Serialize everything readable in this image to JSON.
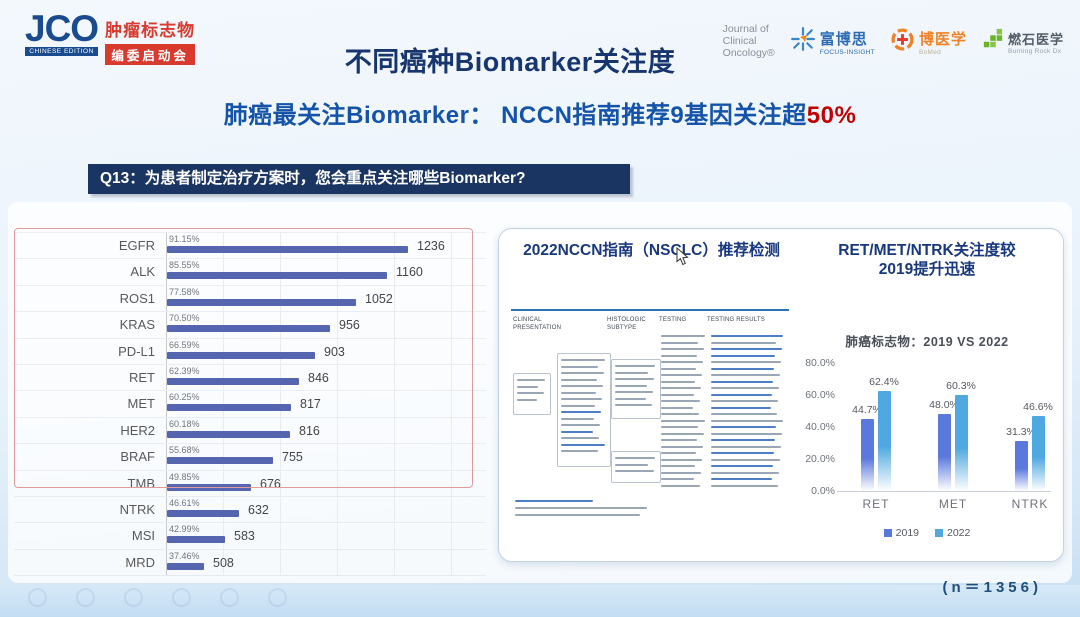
{
  "header": {
    "jco_logo": {
      "acronym": "JCO",
      "edition": "CHINESE EDITION",
      "line1": "肿瘤标志物",
      "line2": "编委启动会"
    },
    "title": "不同癌种Biomarker关注度",
    "logos": {
      "jco_journal": [
        "Journal of",
        "Clinical",
        "Oncology®"
      ],
      "focus_insight": {
        "cn": "富博思",
        "en": "FOCUS-INSIGHT"
      },
      "bomed": {
        "cn": "博医学",
        "en": "BoMed"
      },
      "burning_rock": {
        "cn": "燃石医学",
        "en": "Burning Rock Dx"
      }
    }
  },
  "subtitle": {
    "text": "肺癌最关注Biomarker： NCCN指南推荐9基因关注超",
    "highlight": "50%",
    "highlight_color": "#c00000"
  },
  "question": "Q13：为患者制定治疗方案时，您会重点关注哪些Biomarker?",
  "panel": {
    "left_title": "2022NCCN指南（NSCLC）推荐检测",
    "table_headers": [
      "CLINICAL PRESENTATION",
      "HISTOLOGIC SUBTYPE",
      "TESTING",
      "TESTING RESULTS"
    ],
    "right_title_line1": "RET/MET/NTRK关注度较",
    "right_title_line2": "2019提升迅速"
  },
  "chart_data": [
    {
      "type": "bar",
      "orientation": "horizontal",
      "categories": [
        "EGFR",
        "ALK",
        "ROS1",
        "KRAS",
        "PD-L1",
        "RET",
        "MET",
        "HER2",
        "BRAF",
        "TMB",
        "NTRK",
        "MSI",
        "MRD"
      ],
      "values": [
        1236,
        1160,
        1052,
        956,
        903,
        846,
        817,
        816,
        755,
        676,
        632,
        583,
        508
      ],
      "percent_labels": [
        "91.15%",
        "85.55%",
        "77.58%",
        "70.50%",
        "66.59%",
        "62.39%",
        "60.25%",
        "60.18%",
        "55.68%",
        "49.85%",
        "46.61%",
        "42.99%",
        "37.46%"
      ],
      "bar_color": "#5565b0",
      "n": 1356,
      "highlight_box": {
        "from": "EGFR",
        "to": "TMB",
        "border_color": "#e09a9a"
      },
      "grid": true
    },
    {
      "type": "bar",
      "title": "肺癌标志物：2019 VS 2022",
      "categories": [
        "RET",
        "MET",
        "NTRK"
      ],
      "series": [
        {
          "name": "2019",
          "values": [
            44.7,
            48.0,
            31.3
          ],
          "labels": [
            "44.7%",
            "48.0%",
            "31.3%"
          ],
          "color": "#5b79dd"
        },
        {
          "name": "2022",
          "values": [
            62.4,
            60.3,
            46.6
          ],
          "labels": [
            "62.4%",
            "60.3%",
            "46.6%"
          ],
          "color": "#4fa8e0"
        }
      ],
      "ylim": [
        0,
        80
      ],
      "yticks": [
        "0.0%",
        "20.0%",
        "40.0%",
        "60.0%",
        "80.0%"
      ],
      "legend_position": "bottom"
    }
  ],
  "footer": {
    "n_label": "(n＝1356)"
  }
}
